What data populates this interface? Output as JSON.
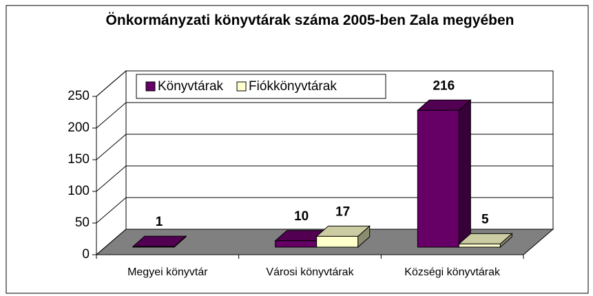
{
  "chart_data": {
    "type": "bar3d",
    "title": "Önkormányzati könyvtárak száma 2005-ben Zala megyében",
    "categories": [
      "Megyei könyvtár",
      "Városi könyvtárak",
      "Községi könyvtárak"
    ],
    "series": [
      {
        "name": "Könyvtárak",
        "color": "#660066",
        "values": [
          1,
          10,
          216
        ]
      },
      {
        "name": "Fiókkönyvtárak",
        "color": "#ffffcc",
        "values": [
          null,
          17,
          5
        ]
      }
    ],
    "ylim": [
      0,
      250
    ],
    "yticks": [
      0,
      50,
      100,
      150,
      200,
      250
    ],
    "grid": true,
    "legend": "top"
  }
}
